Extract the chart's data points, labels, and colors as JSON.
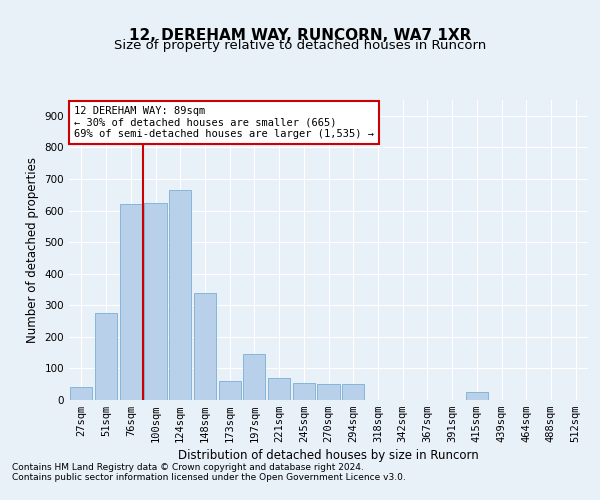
{
  "title1": "12, DEREHAM WAY, RUNCORN, WA7 1XR",
  "title2": "Size of property relative to detached houses in Runcorn",
  "xlabel": "Distribution of detached houses by size in Runcorn",
  "ylabel": "Number of detached properties",
  "bar_labels": [
    "27sqm",
    "51sqm",
    "76sqm",
    "100sqm",
    "124sqm",
    "148sqm",
    "173sqm",
    "197sqm",
    "221sqm",
    "245sqm",
    "270sqm",
    "294sqm",
    "318sqm",
    "342sqm",
    "367sqm",
    "391sqm",
    "415sqm",
    "439sqm",
    "464sqm",
    "488sqm",
    "512sqm"
  ],
  "bar_values": [
    40,
    275,
    620,
    625,
    665,
    340,
    60,
    145,
    70,
    55,
    50,
    50,
    0,
    0,
    0,
    0,
    25,
    0,
    0,
    0,
    0
  ],
  "bar_color": "#b8d0ea",
  "bar_edge_color": "#7aafd4",
  "vline_color": "#cc0000",
  "vline_x": 2.5,
  "annotation_text": "12 DEREHAM WAY: 89sqm\n← 30% of detached houses are smaller (665)\n69% of semi-detached houses are larger (1,535) →",
  "annotation_box_facecolor": "#ffffff",
  "annotation_box_edgecolor": "#cc0000",
  "ylim": [
    0,
    950
  ],
  "yticks": [
    0,
    100,
    200,
    300,
    400,
    500,
    600,
    700,
    800,
    900
  ],
  "footnote1": "Contains HM Land Registry data © Crown copyright and database right 2024.",
  "footnote2": "Contains public sector information licensed under the Open Government Licence v3.0.",
  "background_color": "#e8f0f8",
  "plot_bg_color": "#e8f0f8",
  "grid_color": "#ffffff",
  "title1_fontsize": 11,
  "title2_fontsize": 9.5,
  "xlabel_fontsize": 8.5,
  "ylabel_fontsize": 8.5,
  "tick_fontsize": 7.5,
  "annot_fontsize": 7.5
}
